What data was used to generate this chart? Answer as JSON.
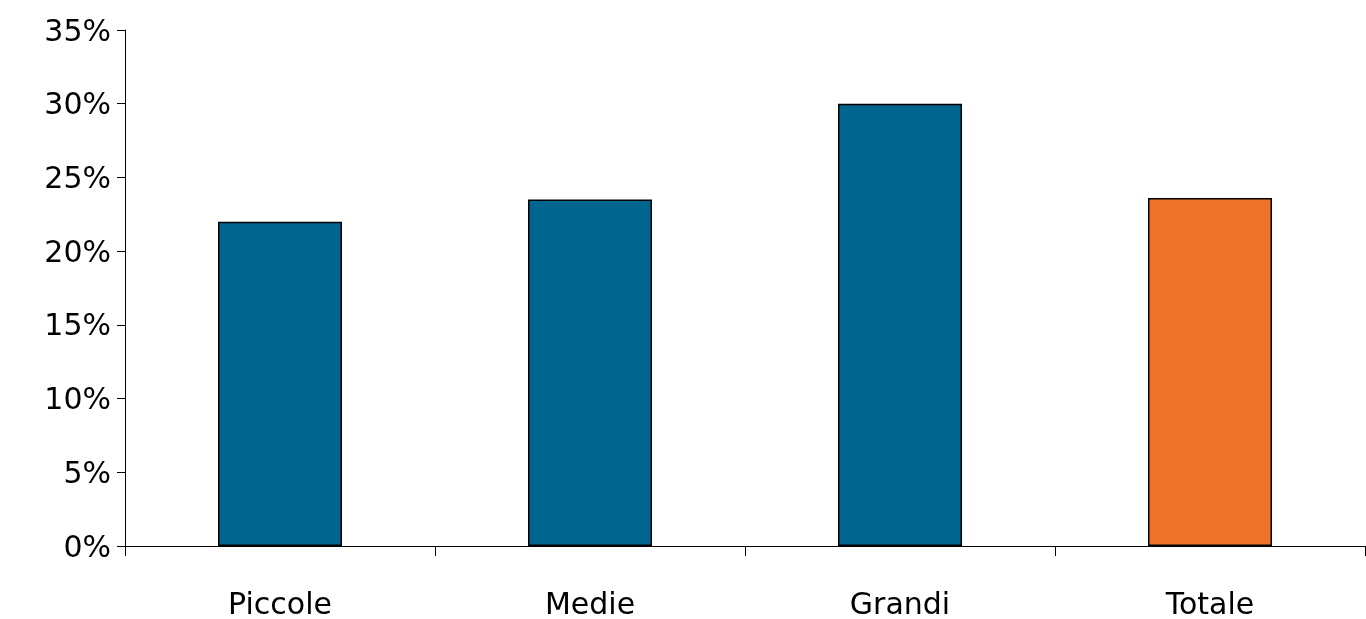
{
  "chart_data": {
    "type": "bar",
    "categories": [
      "Piccole",
      "Medie",
      "Grandi",
      "Totale"
    ],
    "values": [
      22,
      23.5,
      30,
      23.6
    ],
    "colors": [
      "#00668f",
      "#00668f",
      "#00668f",
      "#f07427"
    ],
    "ylim": [
      0,
      35
    ],
    "yticks": [
      {
        "value": 0,
        "label": "0%"
      },
      {
        "value": 5,
        "label": "5%"
      },
      {
        "value": 10,
        "label": "10%"
      },
      {
        "value": 15,
        "label": "15%"
      },
      {
        "value": 20,
        "label": "20%"
      },
      {
        "value": 25,
        "label": "25%"
      },
      {
        "value": 30,
        "label": "30%"
      },
      {
        "value": 35,
        "label": "35%"
      }
    ],
    "grid": false
  }
}
